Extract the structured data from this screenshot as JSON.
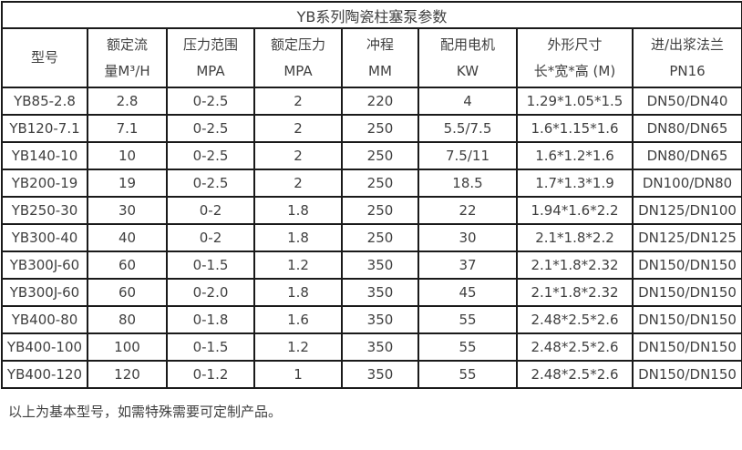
{
  "page": {
    "title": "YB系列陶瓷柱塞泵参数",
    "footnote": "以上为基本型号，如需特殊需要可定制产品。"
  },
  "colors": {
    "border": "#1a1a1a",
    "text": "#404040",
    "background": "#ffffff"
  },
  "table": {
    "columns": [
      {
        "key": "model",
        "line1": "型号",
        "line2": ""
      },
      {
        "key": "rated-flow",
        "line1": "额定流",
        "line2": "量M³/H"
      },
      {
        "key": "pressure-range",
        "line1": "压力范围",
        "line2": "MPA"
      },
      {
        "key": "rated-pressure",
        "line1": "额定压力",
        "line2": "MPA"
      },
      {
        "key": "stroke",
        "line1": "冲程",
        "line2": "MM"
      },
      {
        "key": "motor-power",
        "line1": "配用电机",
        "line2": "KW"
      },
      {
        "key": "dimensions",
        "line1": "外形尺寸",
        "line2": "长*宽*高 (M)"
      },
      {
        "key": "flange",
        "line1": "进/出浆法兰",
        "line2": "PN16"
      }
    ],
    "rows": [
      [
        "YB85-2.8",
        "2.8",
        "0-2.5",
        "2",
        "220",
        "4",
        "1.29*1.05*1.5",
        "DN50/DN40"
      ],
      [
        "YB120-7.1",
        "7.1",
        "0-2.5",
        "2",
        "250",
        "5.5/7.5",
        "1.6*1.15*1.6",
        "DN80/DN65"
      ],
      [
        "YB140-10",
        "10",
        "0-2.5",
        "2",
        "250",
        "7.5/11",
        "1.6*1.2*1.6",
        "DN80/DN65"
      ],
      [
        "YB200-19",
        "19",
        "0-2.5",
        "2",
        "250",
        "18.5",
        "1.7*1.3*1.9",
        "DN100/DN80"
      ],
      [
        "YB250-30",
        "30",
        "0-2",
        "1.8",
        "250",
        "22",
        "1.94*1.6*2.2",
        "DN125/DN100"
      ],
      [
        "YB300-40",
        "40",
        "0-2",
        "1.8",
        "250",
        "30",
        "2.1*1.8*2.2",
        "DN125/DN125"
      ],
      [
        "YB300J-60",
        "60",
        "0-1.5",
        "1.2",
        "350",
        "37",
        "2.1*1.8*2.32",
        "DN150/DN150"
      ],
      [
        "YB300J-60",
        "60",
        "0-2.0",
        "1.8",
        "350",
        "45",
        "2.1*1.8*2.32",
        "DN150/DN150"
      ],
      [
        "YB400-80",
        "80",
        "0-1.8",
        "1.6",
        "350",
        "55",
        "2.48*2.5*2.6",
        "DN150/DN150"
      ],
      [
        "YB400-100",
        "100",
        "0-1.5",
        "1.2",
        "350",
        "55",
        "2.48*2.5*2.6",
        "DN150/DN150"
      ],
      [
        "YB400-120",
        "120",
        "0-1.2",
        "1",
        "350",
        "55",
        "2.48*2.5*2.6",
        "DN150/DN150"
      ]
    ]
  }
}
